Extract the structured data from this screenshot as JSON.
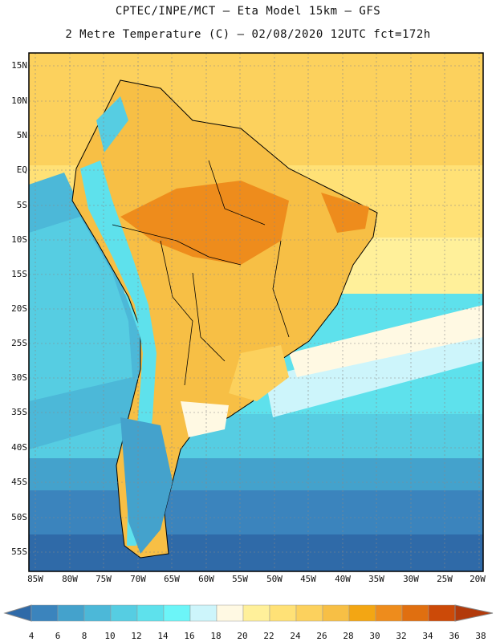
{
  "header": {
    "line1": "CPTEC/INPE/MCT –  Eta Model 15km – GFS",
    "line2": "2 Metre Temperature (C) – 02/08/2020 12UTC fct=172h"
  },
  "map": {
    "lat_ticks": [
      "15N",
      "10N",
      "5N",
      "EQ",
      "5S",
      "10S",
      "15S",
      "20S",
      "25S",
      "30S",
      "35S",
      "40S",
      "45S",
      "50S",
      "55S"
    ],
    "lon_ticks": [
      "85W",
      "80W",
      "75W",
      "70W",
      "65W",
      "60W",
      "55W",
      "50W",
      "45W",
      "40W",
      "35W",
      "30W",
      "25W",
      "20W"
    ]
  },
  "colorbar": {
    "labels": [
      "4",
      "6",
      "8",
      "10",
      "12",
      "14",
      "16",
      "18",
      "20",
      "22",
      "24",
      "26",
      "28",
      "30",
      "32",
      "34",
      "36",
      "38"
    ],
    "colors": [
      "#2f6aa8",
      "#3b84bd",
      "#44a2cc",
      "#4cb8d8",
      "#56cde2",
      "#5ee1ec",
      "#6cf5f8",
      "#cdf5fb",
      "#fff9e3",
      "#fff09a",
      "#ffe176",
      "#fcd15d",
      "#f7bf45",
      "#f3a613",
      "#ee8c1c",
      "#e06f10",
      "#cc4a08",
      "#b23a0b"
    ]
  }
}
